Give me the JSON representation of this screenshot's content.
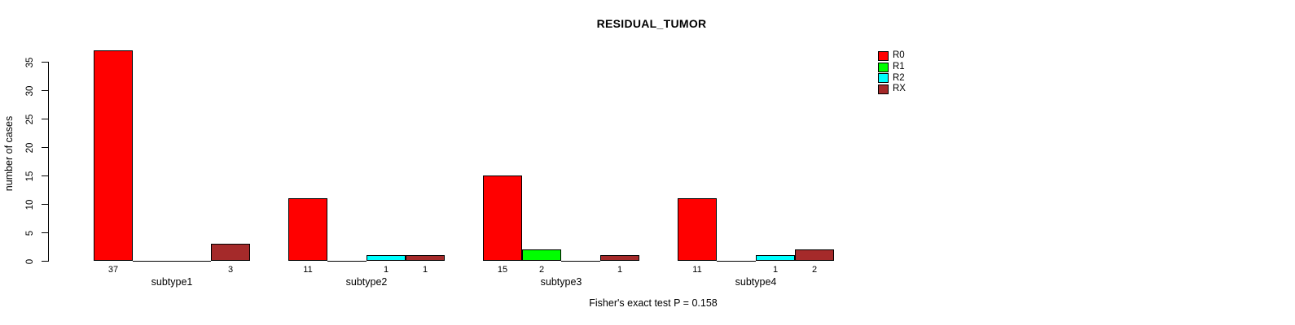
{
  "chart_data": {
    "type": "bar",
    "title": "RESIDUAL_TUMOR",
    "ylabel": "number of cases",
    "xlabel": "",
    "caption": "Fisher's exact test P = 0.158",
    "categories": [
      "subtype1",
      "subtype2",
      "subtype3",
      "subtype4"
    ],
    "series": [
      {
        "name": "R0",
        "color": "#ff0000",
        "values": [
          37,
          11,
          15,
          11
        ]
      },
      {
        "name": "R1",
        "color": "#00ff00",
        "values": [
          0,
          0,
          2,
          0
        ]
      },
      {
        "name": "R2",
        "color": "#00ffff",
        "values": [
          0,
          1,
          0,
          1
        ]
      },
      {
        "name": "RX",
        "color": "#a52a2a",
        "values": [
          3,
          1,
          1,
          2
        ]
      }
    ],
    "bar_value_labels_shown": true,
    "zero_values_unlabeled": true,
    "yticks": [
      0,
      5,
      10,
      15,
      20,
      25,
      30,
      35
    ],
    "ylim": [
      0,
      37
    ],
    "grid": false,
    "legend_position": "top-right",
    "background_color": "#ffffff",
    "bar_border_color": "#000000"
  }
}
